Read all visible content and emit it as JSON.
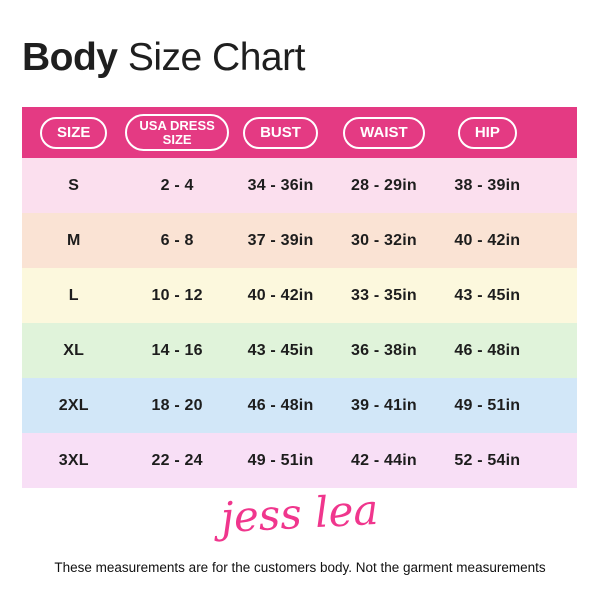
{
  "title": {
    "bold": "Body",
    "rest": " Size Chart"
  },
  "colors": {
    "header_bar": "#E43A83",
    "pill_border": "#FFFFFF",
    "pill_text": "#FFFFFF",
    "cell_text": "#1D1D1D",
    "logo_pink": "#F0368D"
  },
  "logo": {
    "text": "jess lea"
  },
  "footer": {
    "note": "These measurements are for the customers body. Not the garment measurements"
  },
  "chart_data": {
    "type": "table",
    "title": "Body Size Chart",
    "headers": [
      "SIZE",
      "USA DRESS SIZE",
      "BUST",
      "WAIST",
      "HIP"
    ],
    "rows": [
      {
        "cells": [
          "S",
          "2 - 4",
          "34 - 36in",
          "28 - 29in",
          "38 - 39in"
        ],
        "bg": "#FBDFEE"
      },
      {
        "cells": [
          "M",
          "6 - 8",
          "37 - 39in",
          "30 - 32in",
          "40 - 42in"
        ],
        "bg": "#FAE3D4"
      },
      {
        "cells": [
          "L",
          "10 - 12",
          "40 - 42in",
          "33 - 35in",
          "43 - 45in"
        ],
        "bg": "#FCF8DD"
      },
      {
        "cells": [
          "XL",
          "14 - 16",
          "43 - 45in",
          "36 - 38in",
          "46 - 48in"
        ],
        "bg": "#E0F3DA"
      },
      {
        "cells": [
          "2XL",
          "18 - 20",
          "46 - 48in",
          "39 - 41in",
          "49 - 51in"
        ],
        "bg": "#D2E7F8"
      },
      {
        "cells": [
          "3XL",
          "22 - 24",
          "49 - 51in",
          "42 - 44in",
          "52 - 54in"
        ],
        "bg": "#F8DFF6"
      }
    ]
  }
}
